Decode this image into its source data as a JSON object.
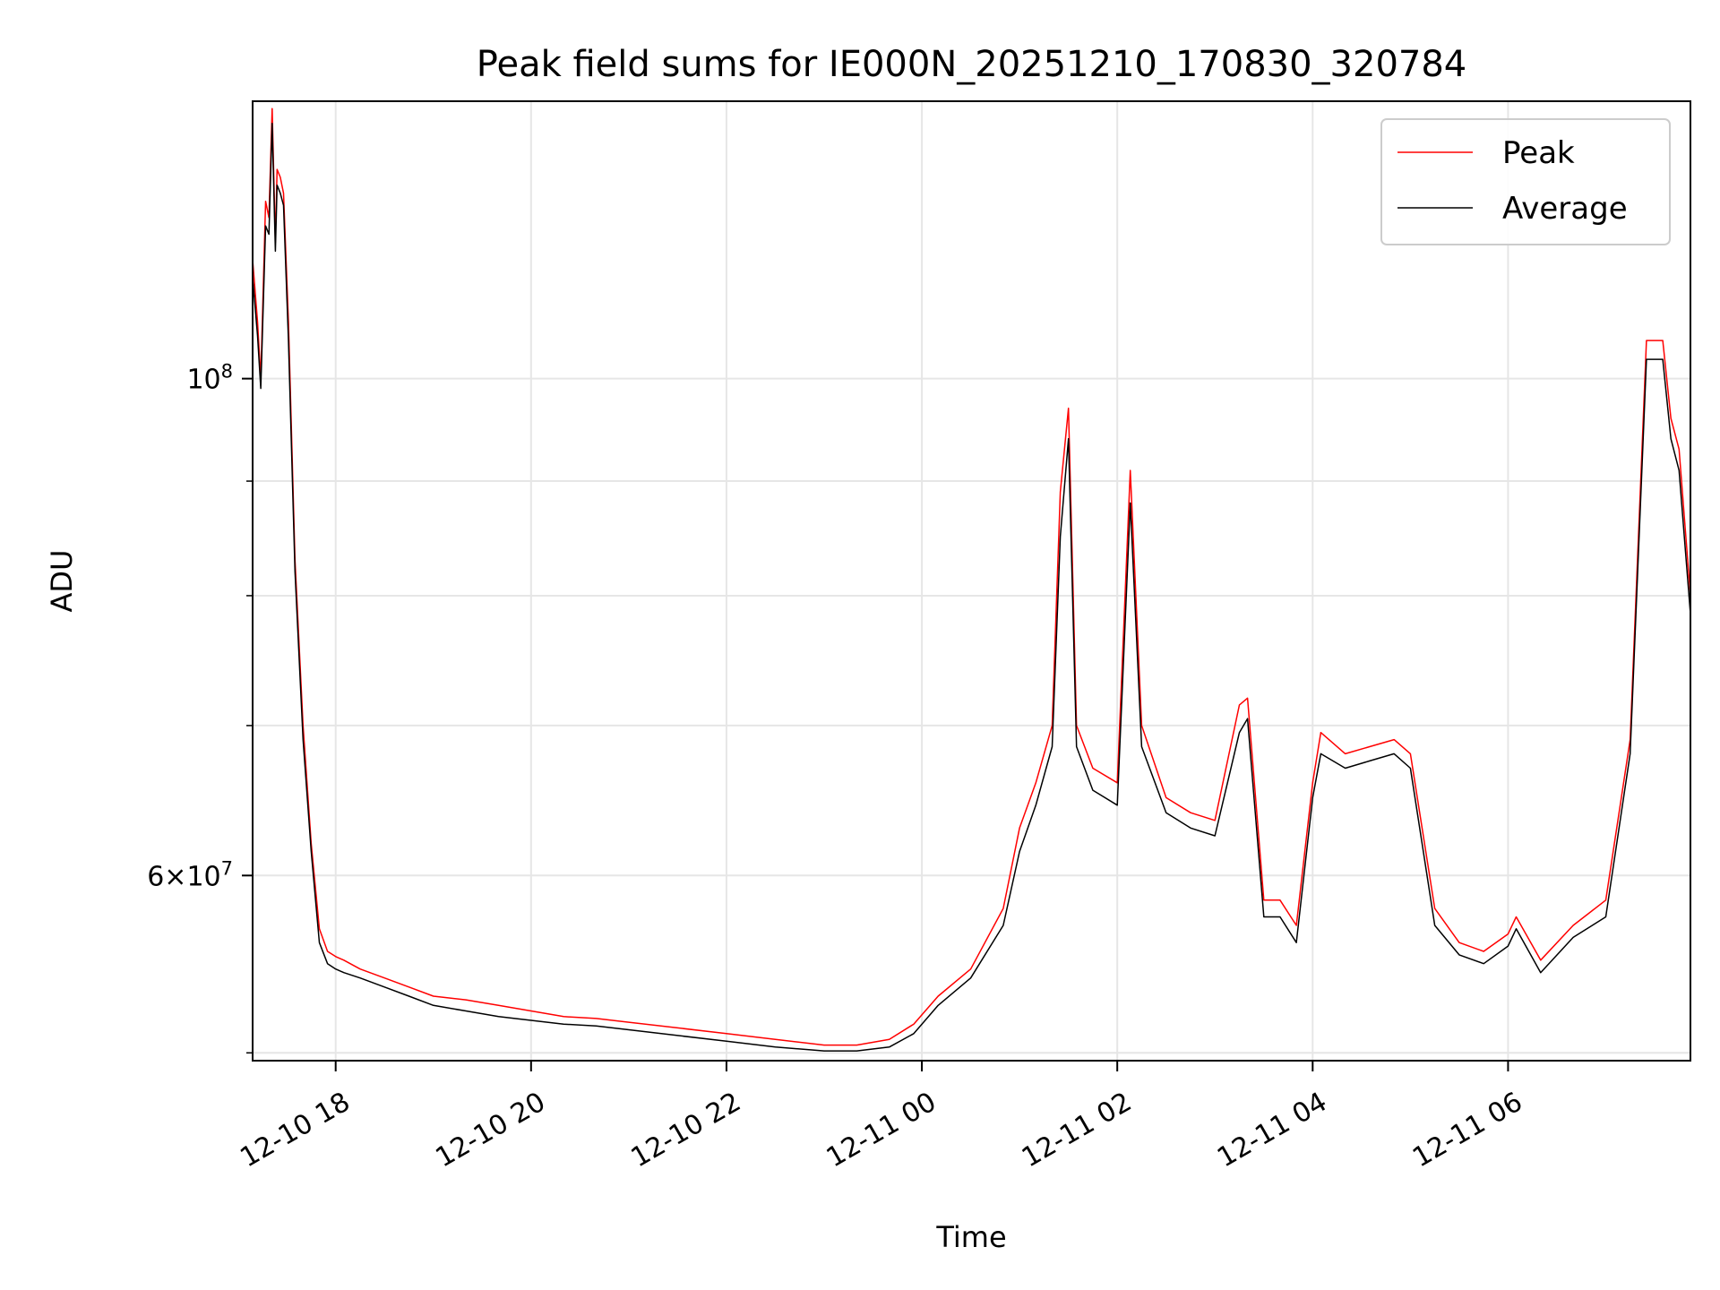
{
  "chart_data": {
    "type": "line",
    "title": "Peak field sums for IE000N_20251210_170830_320784",
    "xlabel": "Time",
    "ylabel": "ADU",
    "x_unit": "datetime",
    "xlim": [
      "2025-12-10 17:09",
      "2025-12-11 07:52"
    ],
    "ylim": [
      49600000,
      133000000
    ],
    "y_scale": "log",
    "grid": true,
    "legend_position": "upper right",
    "x_ticks": [
      {
        "x": "2025-12-10 18:00",
        "label": "12-10 18"
      },
      {
        "x": "2025-12-10 20:00",
        "label": "12-10 20"
      },
      {
        "x": "2025-12-10 22:00",
        "label": "12-10 22"
      },
      {
        "x": "2025-12-11 00:00",
        "label": "12-11 00"
      },
      {
        "x": "2025-12-11 02:00",
        "label": "12-11 02"
      },
      {
        "x": "2025-12-11 04:00",
        "label": "12-11 04"
      },
      {
        "x": "2025-12-11 06:00",
        "label": "12-11 06"
      }
    ],
    "y_major_ticks": [
      {
        "y": 100000000,
        "label_base": "10",
        "label_exp": "8",
        "label_prefix": ""
      },
      {
        "y": 60000000,
        "label_base": "10",
        "label_exp": "7",
        "label_prefix": "6×"
      }
    ],
    "y_minor_gridlines": [
      50000000,
      70000000,
      80000000,
      90000000
    ],
    "series": [
      {
        "name": "Peak",
        "color": "#ff0000",
        "x": [
          "2025-12-10 17:09",
          "2025-12-10 17:12",
          "2025-12-10 17:14",
          "2025-12-10 17:17",
          "2025-12-10 17:19",
          "2025-12-10 17:21",
          "2025-12-10 17:23",
          "2025-12-10 17:24",
          "2025-12-10 17:26",
          "2025-12-10 17:28",
          "2025-12-10 17:31",
          "2025-12-10 17:35",
          "2025-12-10 17:40",
          "2025-12-10 17:45",
          "2025-12-10 17:50",
          "2025-12-10 17:55",
          "2025-12-10 18:00",
          "2025-12-10 18:05",
          "2025-12-10 18:15",
          "2025-12-10 18:30",
          "2025-12-10 18:45",
          "2025-12-10 19:00",
          "2025-12-10 19:20",
          "2025-12-10 19:40",
          "2025-12-10 20:00",
          "2025-12-10 20:20",
          "2025-12-10 20:40",
          "2025-12-10 21:00",
          "2025-12-10 21:30",
          "2025-12-10 22:00",
          "2025-12-10 22:30",
          "2025-12-10 23:00",
          "2025-12-10 23:20",
          "2025-12-10 23:40",
          "2025-12-10 23:55",
          "2025-12-11 00:10",
          "2025-12-11 00:30",
          "2025-12-11 00:50",
          "2025-12-11 01:00",
          "2025-12-11 01:10",
          "2025-12-11 01:20",
          "2025-12-11 01:25",
          "2025-12-11 01:30",
          "2025-12-11 01:35",
          "2025-12-11 01:45",
          "2025-12-11 02:00",
          "2025-12-11 02:08",
          "2025-12-11 02:15",
          "2025-12-11 02:30",
          "2025-12-11 02:45",
          "2025-12-11 03:00",
          "2025-12-11 03:15",
          "2025-12-11 03:20",
          "2025-12-11 03:30",
          "2025-12-11 03:40",
          "2025-12-11 03:50",
          "2025-12-11 04:00",
          "2025-12-11 04:05",
          "2025-12-11 04:20",
          "2025-12-11 04:35",
          "2025-12-11 04:50",
          "2025-12-11 05:00",
          "2025-12-11 05:15",
          "2025-12-11 05:30",
          "2025-12-11 05:45",
          "2025-12-11 06:00",
          "2025-12-11 06:05",
          "2025-12-11 06:20",
          "2025-12-11 06:40",
          "2025-12-11 07:00",
          "2025-12-11 07:15",
          "2025-12-11 07:25",
          "2025-12-11 07:35",
          "2025-12-11 07:40",
          "2025-12-11 07:45",
          "2025-12-11 07:52"
        ],
        "y": [
          113000000,
          106000000,
          100000000,
          120000000,
          118000000,
          132000000,
          115000000,
          124000000,
          123000000,
          121000000,
          106000000,
          83000000,
          70000000,
          62000000,
          56800000,
          55500000,
          55200000,
          55000000,
          54500000,
          54000000,
          53500000,
          53000000,
          52800000,
          52500000,
          52200000,
          51900000,
          51800000,
          51600000,
          51300000,
          51000000,
          50700000,
          50400000,
          50400000,
          50700000,
          51500000,
          53000000,
          54500000,
          58000000,
          63000000,
          66000000,
          70000000,
          89000000,
          97000000,
          70000000,
          67000000,
          66000000,
          91000000,
          70000000,
          65000000,
          64000000,
          63500000,
          71500000,
          72000000,
          58500000,
          58500000,
          57000000,
          66000000,
          69500000,
          68000000,
          68500000,
          69000000,
          68000000,
          58000000,
          56000000,
          55500000,
          56500000,
          57500000,
          55000000,
          57000000,
          58500000,
          69000000,
          104000000,
          104000000,
          96000000,
          93000000,
          80000000
        ]
      },
      {
        "name": "Average",
        "color": "#000000",
        "x": [
          "2025-12-10 17:09",
          "2025-12-10 17:12",
          "2025-12-10 17:14",
          "2025-12-10 17:17",
          "2025-12-10 17:19",
          "2025-12-10 17:21",
          "2025-12-10 17:23",
          "2025-12-10 17:24",
          "2025-12-10 17:26",
          "2025-12-10 17:28",
          "2025-12-10 17:31",
          "2025-12-10 17:35",
          "2025-12-10 17:40",
          "2025-12-10 17:45",
          "2025-12-10 17:50",
          "2025-12-10 17:55",
          "2025-12-10 18:00",
          "2025-12-10 18:05",
          "2025-12-10 18:15",
          "2025-12-10 18:30",
          "2025-12-10 18:45",
          "2025-12-10 19:00",
          "2025-12-10 19:20",
          "2025-12-10 19:40",
          "2025-12-10 20:00",
          "2025-12-10 20:20",
          "2025-12-10 20:40",
          "2025-12-10 21:00",
          "2025-12-10 21:30",
          "2025-12-10 22:00",
          "2025-12-10 22:30",
          "2025-12-10 23:00",
          "2025-12-10 23:20",
          "2025-12-10 23:40",
          "2025-12-10 23:55",
          "2025-12-11 00:10",
          "2025-12-11 00:30",
          "2025-12-11 00:50",
          "2025-12-11 01:00",
          "2025-12-11 01:10",
          "2025-12-11 01:20",
          "2025-12-11 01:25",
          "2025-12-11 01:30",
          "2025-12-11 01:35",
          "2025-12-11 01:45",
          "2025-12-11 02:00",
          "2025-12-11 02:08",
          "2025-12-11 02:15",
          "2025-12-11 02:30",
          "2025-12-11 02:45",
          "2025-12-11 03:00",
          "2025-12-11 03:15",
          "2025-12-11 03:20",
          "2025-12-11 03:30",
          "2025-12-11 03:40",
          "2025-12-11 03:50",
          "2025-12-11 04:00",
          "2025-12-11 04:05",
          "2025-12-11 04:20",
          "2025-12-11 04:35",
          "2025-12-11 04:50",
          "2025-12-11 05:00",
          "2025-12-11 05:15",
          "2025-12-11 05:30",
          "2025-12-11 05:45",
          "2025-12-11 06:00",
          "2025-12-11 06:05",
          "2025-12-11 06:20",
          "2025-12-11 06:40",
          "2025-12-11 07:00",
          "2025-12-11 07:15",
          "2025-12-11 07:25",
          "2025-12-11 07:35",
          "2025-12-11 07:40",
          "2025-12-11 07:45",
          "2025-12-11 07:52"
        ],
        "y": [
          111000000,
          104500000,
          99000000,
          117000000,
          116000000,
          130000000,
          114000000,
          122000000,
          121000000,
          119500000,
          104000000,
          82000000,
          69000000,
          61500000,
          56000000,
          54800000,
          54500000,
          54300000,
          54000000,
          53500000,
          53000000,
          52500000,
          52200000,
          51900000,
          51700000,
          51500000,
          51400000,
          51200000,
          50900000,
          50600000,
          50300000,
          50100000,
          50100000,
          50300000,
          51000000,
          52500000,
          54000000,
          57000000,
          61500000,
          64500000,
          68500000,
          85000000,
          94000000,
          68500000,
          65500000,
          64500000,
          88000000,
          68500000,
          64000000,
          63000000,
          62500000,
          69500000,
          70500000,
          57500000,
          57500000,
          56000000,
          65000000,
          68000000,
          67000000,
          67500000,
          68000000,
          67000000,
          57000000,
          55300000,
          54800000,
          55800000,
          56800000,
          54300000,
          56300000,
          57500000,
          68000000,
          102000000,
          102000000,
          94000000,
          91000000,
          78500000
        ]
      }
    ]
  }
}
